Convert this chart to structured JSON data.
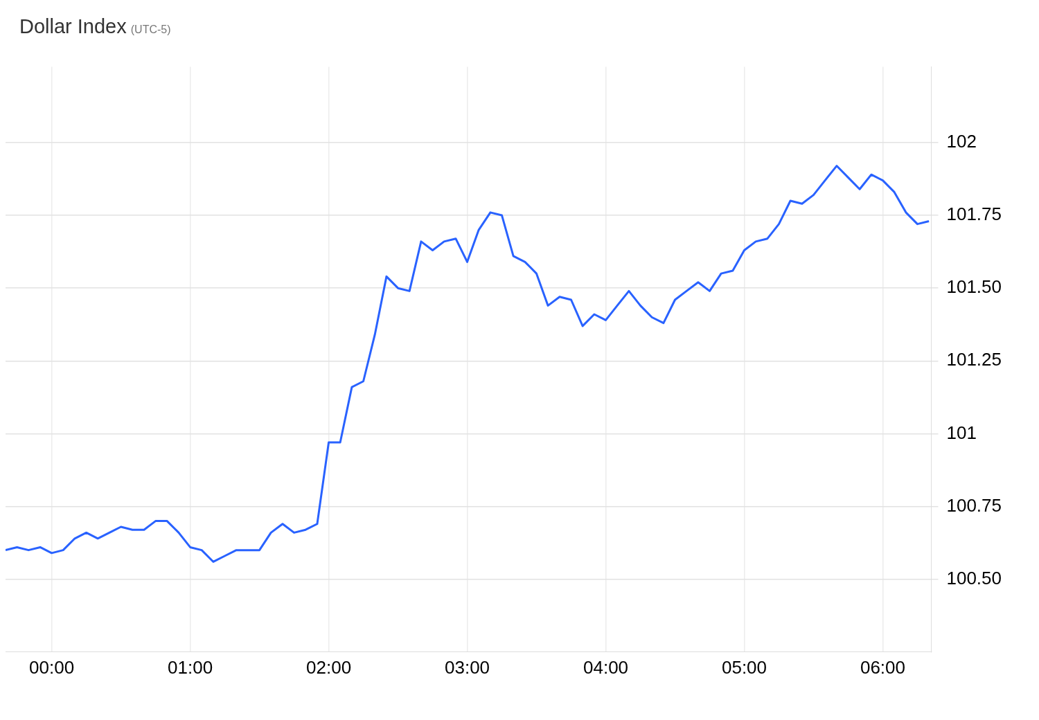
{
  "chart_data": {
    "type": "line",
    "title": "Dollar Index",
    "subtitle": "(UTC-5)",
    "x": [
      -0.333,
      -0.25,
      -0.167,
      -0.083,
      0,
      0.083,
      0.167,
      0.25,
      0.333,
      0.417,
      0.5,
      0.583,
      0.667,
      0.75,
      0.833,
      0.917,
      1,
      1.083,
      1.167,
      1.25,
      1.333,
      1.417,
      1.5,
      1.583,
      1.667,
      1.75,
      1.833,
      1.917,
      2,
      2.083,
      2.167,
      2.25,
      2.333,
      2.417,
      2.5,
      2.583,
      2.667,
      2.75,
      2.833,
      2.917,
      3,
      3.083,
      3.167,
      3.25,
      3.333,
      3.417,
      3.5,
      3.583,
      3.667,
      3.75,
      3.833,
      3.917,
      4,
      4.083,
      4.167,
      4.25,
      4.333,
      4.417,
      4.5,
      4.583,
      4.667,
      4.75,
      4.833,
      4.917,
      5,
      5.083,
      5.167,
      5.25,
      5.333,
      5.417,
      5.5,
      5.583,
      5.667,
      5.75,
      5.833,
      5.917,
      6,
      6.083,
      6.167,
      6.25,
      6.333
    ],
    "series": [
      {
        "color": "#2962ff",
        "values": [
          100.6,
          100.61,
          100.6,
          100.61,
          100.59,
          100.6,
          100.64,
          100.66,
          100.64,
          100.66,
          100.68,
          100.67,
          100.67,
          100.7,
          100.7,
          100.66,
          100.61,
          100.6,
          100.56,
          100.58,
          100.6,
          100.6,
          100.6,
          100.66,
          100.69,
          100.66,
          100.67,
          100.69,
          100.97,
          100.97,
          101.16,
          101.18,
          101.34,
          101.54,
          101.5,
          101.49,
          101.66,
          101.63,
          101.66,
          101.67,
          101.59,
          101.7,
          101.76,
          101.75,
          101.61,
          101.59,
          101.55,
          101.44,
          101.47,
          101.46,
          101.37,
          101.41,
          101.39,
          101.44,
          101.49,
          101.44,
          101.4,
          101.38,
          101.46,
          101.49,
          101.52,
          101.49,
          101.55,
          101.56,
          101.63,
          101.66,
          101.67,
          101.72,
          101.8,
          101.79,
          101.82,
          101.87,
          101.92,
          101.88,
          101.84,
          101.89,
          101.87,
          101.83,
          101.76,
          101.72,
          101.73
        ]
      }
    ],
    "xlim": [
      -0.333,
      6.35
    ],
    "xticks": [
      {
        "value": 0,
        "label": "00:00"
      },
      {
        "value": 1,
        "label": "01:00"
      },
      {
        "value": 2,
        "label": "02:00"
      },
      {
        "value": 3,
        "label": "03:00"
      },
      {
        "value": 4,
        "label": "04:00"
      },
      {
        "value": 5,
        "label": "05:00"
      },
      {
        "value": 6,
        "label": "06:00"
      }
    ],
    "ylim": [
      100.25,
      102.26
    ],
    "yticks": [
      {
        "value": 100.5,
        "label": "100.50"
      },
      100.75,
      101,
      101.25,
      {
        "value": 101.5,
        "label": "101.50"
      },
      101.75,
      102
    ],
    "grid": true,
    "legend": false,
    "marker": "none",
    "line_style": "solid"
  }
}
